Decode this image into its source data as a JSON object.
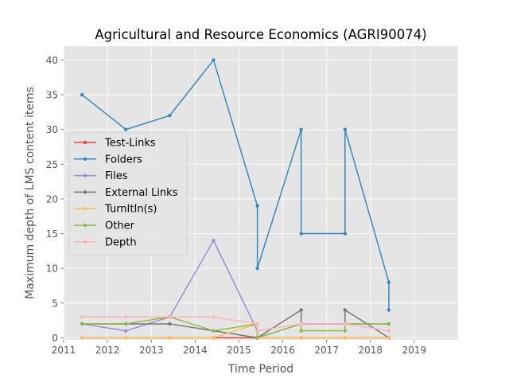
{
  "chart_data": {
    "type": "line",
    "title": "Agricultural and Resource Economics (AGRI90074)",
    "xlabel": "Time Period",
    "ylabel": "Maximum depth of LMS content items",
    "xlim": [
      2011,
      2020
    ],
    "ylim": [
      -0.3,
      42
    ],
    "xticks": [
      2011,
      2012,
      2013,
      2014,
      2015,
      2016,
      2017,
      2018,
      2019
    ],
    "yticks": [
      0,
      5,
      10,
      15,
      20,
      25,
      30,
      35,
      40
    ],
    "grid": true,
    "legend_position": "center-left",
    "series": [
      {
        "name": "Test-Links",
        "color": "#E24A33",
        "points": [
          [
            2011.42,
            0
          ],
          [
            2012.42,
            0
          ],
          [
            2013.42,
            0
          ],
          [
            2014.42,
            0
          ],
          [
            2015.42,
            0
          ],
          [
            2015.42,
            0
          ],
          [
            2016.42,
            0
          ],
          [
            2016.42,
            0
          ],
          [
            2017.42,
            0
          ],
          [
            2017.42,
            0
          ],
          [
            2018.42,
            0
          ],
          [
            2018.42,
            0
          ]
        ]
      },
      {
        "name": "Folders",
        "color": "#348ABD",
        "points": [
          [
            2011.42,
            35
          ],
          [
            2012.42,
            30
          ],
          [
            2013.42,
            32
          ],
          [
            2014.42,
            40
          ],
          [
            2015.42,
            19
          ],
          [
            2015.42,
            10
          ],
          [
            2016.42,
            30
          ],
          [
            2016.42,
            15
          ],
          [
            2017.42,
            15
          ],
          [
            2017.42,
            30
          ],
          [
            2018.42,
            8
          ],
          [
            2018.42,
            4
          ]
        ]
      },
      {
        "name": "Files",
        "color": "#988ED5",
        "points": [
          [
            2011.42,
            2
          ],
          [
            2012.42,
            1
          ],
          [
            2013.42,
            3
          ],
          [
            2014.42,
            14
          ],
          [
            2015.42,
            1
          ],
          [
            2015.42,
            0
          ],
          [
            2016.42,
            2
          ],
          [
            2016.42,
            2
          ],
          [
            2017.42,
            2
          ],
          [
            2017.42,
            2
          ],
          [
            2018.42,
            2
          ],
          [
            2018.42,
            2
          ]
        ]
      },
      {
        "name": "External Links",
        "color": "#777777",
        "points": [
          [
            2011.42,
            2
          ],
          [
            2012.42,
            2
          ],
          [
            2013.42,
            2
          ],
          [
            2014.42,
            1
          ],
          [
            2015.42,
            0
          ],
          [
            2015.42,
            0
          ],
          [
            2016.42,
            4
          ],
          [
            2016.42,
            2
          ],
          [
            2017.42,
            2
          ],
          [
            2017.42,
            4
          ],
          [
            2018.42,
            0
          ],
          [
            2018.42,
            0
          ]
        ]
      },
      {
        "name": "TurnItIn(s)",
        "color": "#FBC15E",
        "points": [
          [
            2011.42,
            0
          ],
          [
            2012.42,
            0
          ],
          [
            2013.42,
            0
          ],
          [
            2014.42,
            0
          ],
          [
            2015.42,
            2
          ],
          [
            2015.42,
            0
          ],
          [
            2016.42,
            0
          ],
          [
            2016.42,
            0
          ],
          [
            2017.42,
            0
          ],
          [
            2017.42,
            0
          ],
          [
            2018.42,
            0
          ],
          [
            2018.42,
            0
          ]
        ]
      },
      {
        "name": "Other",
        "color": "#8EBA42",
        "points": [
          [
            2011.42,
            2
          ],
          [
            2012.42,
            2
          ],
          [
            2013.42,
            3
          ],
          [
            2014.42,
            1
          ],
          [
            2015.42,
            2
          ],
          [
            2015.42,
            0
          ],
          [
            2016.42,
            2
          ],
          [
            2016.42,
            1
          ],
          [
            2017.42,
            1
          ],
          [
            2017.42,
            2
          ],
          [
            2018.42,
            2
          ],
          [
            2018.42,
            2
          ]
        ]
      },
      {
        "name": "Depth",
        "color": "#FFB5B8",
        "points": [
          [
            2011.42,
            3
          ],
          [
            2012.42,
            3
          ],
          [
            2013.42,
            3
          ],
          [
            2014.42,
            3
          ],
          [
            2015.42,
            2
          ],
          [
            2015.42,
            1
          ],
          [
            2016.42,
            2
          ],
          [
            2016.42,
            2
          ],
          [
            2017.42,
            2
          ],
          [
            2017.42,
            2
          ],
          [
            2018.42,
            1
          ],
          [
            2018.42,
            1
          ]
        ]
      }
    ]
  }
}
